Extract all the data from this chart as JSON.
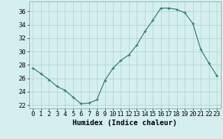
{
  "x": [
    0,
    1,
    2,
    3,
    4,
    5,
    6,
    7,
    8,
    9,
    10,
    11,
    12,
    13,
    14,
    15,
    16,
    17,
    18,
    19,
    20,
    21,
    22,
    23
  ],
  "y": [
    27.5,
    26.7,
    25.8,
    24.8,
    24.2,
    23.2,
    22.2,
    22.3,
    22.8,
    25.7,
    27.5,
    28.7,
    29.5,
    31.0,
    33.0,
    34.7,
    36.5,
    36.5,
    36.3,
    35.8,
    34.2,
    30.3,
    28.3,
    26.4
  ],
  "line_color": "#2d7d6d",
  "bg_color": "#d5efef",
  "grid_color": "#afd4d4",
  "xlabel": "Humidex (Indice chaleur)",
  "ylim": [
    21.5,
    37.5
  ],
  "xlim": [
    -0.5,
    23.5
  ],
  "yticks": [
    22,
    24,
    26,
    28,
    30,
    32,
    34,
    36
  ],
  "xticks": [
    0,
    1,
    2,
    3,
    4,
    5,
    6,
    7,
    8,
    9,
    10,
    11,
    12,
    13,
    14,
    15,
    16,
    17,
    18,
    19,
    20,
    21,
    22,
    23
  ],
  "marker": "P",
  "markersize": 2.5,
  "linewidth": 0.9,
  "xlabel_fontsize": 7.5,
  "tick_fontsize": 6.5
}
